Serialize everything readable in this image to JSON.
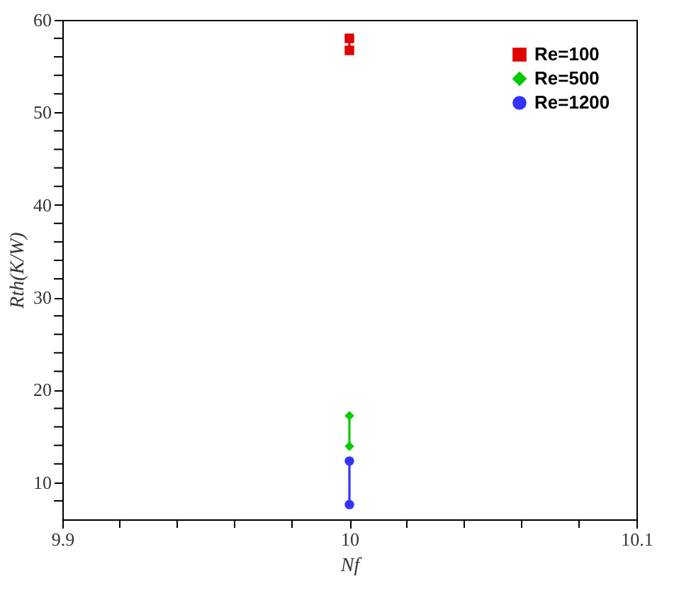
{
  "chart_data": {
    "type": "line",
    "xlabel": "Nf",
    "ylabel": "Rth(K/W)",
    "x": [
      10,
      10
    ],
    "series": [
      {
        "name": "Re=100",
        "color": "#e00000",
        "marker": "square",
        "values": [
          58.0,
          56.7
        ]
      },
      {
        "name": "Re=500",
        "color": "#00cc00",
        "marker": "diamond",
        "values": [
          17.2,
          13.9
        ]
      },
      {
        "name": "Re=1200",
        "color": "#3333ff",
        "marker": "circle",
        "values": [
          12.3,
          7.6
        ]
      }
    ],
    "xlim": [
      9.9,
      10.1
    ],
    "xticks": [
      9.9,
      {
        "value": 9.92,
        "label": null
      },
      {
        "value": 9.94,
        "label": null
      },
      {
        "value": 9.96,
        "label": null
      },
      {
        "value": 9.98,
        "label": null
      },
      10,
      {
        "value": 10.02,
        "label": null
      },
      {
        "value": 10.04,
        "label": null
      },
      {
        "value": 10.06,
        "label": null
      },
      {
        "value": 10.08,
        "label": null
      },
      10.1
    ],
    "ylim": [
      6,
      60
    ],
    "yticks": [
      {
        "value": 8,
        "label": null
      },
      10,
      {
        "value": 12,
        "label": null
      },
      {
        "value": 14,
        "label": null
      },
      {
        "value": 16,
        "label": null
      },
      {
        "value": 18,
        "label": null
      },
      20,
      {
        "value": 22,
        "label": null
      },
      {
        "value": 24,
        "label": null
      },
      {
        "value": 26,
        "label": null
      },
      {
        "value": 28,
        "label": null
      },
      30,
      {
        "value": 32,
        "label": null
      },
      {
        "value": 34,
        "label": null
      },
      {
        "value": 36,
        "label": null
      },
      {
        "value": 38,
        "label": null
      },
      40,
      {
        "value": 42,
        "label": null
      },
      {
        "value": 44,
        "label": null
      },
      {
        "value": 46,
        "label": null
      },
      {
        "value": 48,
        "label": null
      },
      50,
      {
        "value": 52,
        "label": null
      },
      {
        "value": 54,
        "label": null
      },
      {
        "value": 56,
        "label": null
      },
      {
        "value": 58,
        "label": null
      },
      60
    ],
    "grid": false,
    "legend": "top right",
    "line_style": "solid"
  }
}
